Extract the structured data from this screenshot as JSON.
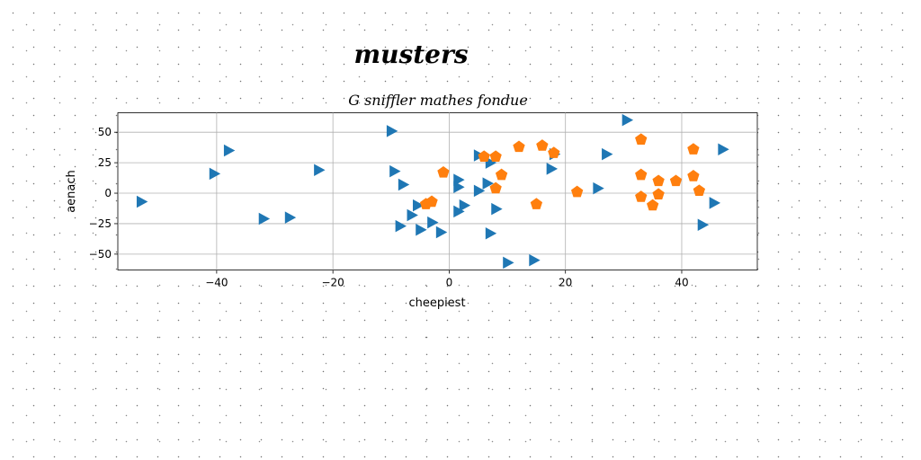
{
  "figure_title": "musters",
  "chart_data": {
    "type": "scatter",
    "title": "G sniffler mathes fondue",
    "xlabel": "cheepiest",
    "ylabel": "aenach",
    "xlim": [
      -57,
      53
    ],
    "ylim": [
      -63,
      66
    ],
    "xticks": [
      -40,
      -20,
      0,
      20,
      40
    ],
    "yticks": [
      -50,
      -25,
      0,
      25,
      50
    ],
    "xtick_labels": [
      "−40",
      "−20",
      "0",
      "20",
      "40"
    ],
    "ytick_labels": [
      "−50",
      "−25",
      "0",
      "25",
      "50"
    ],
    "grid": true,
    "series": [
      {
        "marker": "triangle-right",
        "color": "#1f77b4",
        "points": [
          [
            -53,
            -7
          ],
          [
            -40.5,
            16
          ],
          [
            -38,
            35
          ],
          [
            -32,
            -21
          ],
          [
            -27.5,
            -20
          ],
          [
            -22.5,
            19
          ],
          [
            -10,
            51
          ],
          [
            -9.5,
            18
          ],
          [
            -8,
            7
          ],
          [
            -8.5,
            -27
          ],
          [
            -6.5,
            -18
          ],
          [
            -5.5,
            -10
          ],
          [
            -5,
            -30
          ],
          [
            -3,
            -24
          ],
          [
            -1.5,
            -32
          ],
          [
            1.5,
            11
          ],
          [
            1.5,
            5
          ],
          [
            1.5,
            -15
          ],
          [
            2.5,
            -10
          ],
          [
            5,
            2
          ],
          [
            5,
            31
          ],
          [
            6.5,
            8
          ],
          [
            7,
            25
          ],
          [
            7,
            -33
          ],
          [
            8,
            -13
          ],
          [
            10,
            -57
          ],
          [
            14.5,
            -55
          ],
          [
            17.5,
            20
          ],
          [
            18,
            32
          ],
          [
            25.5,
            4
          ],
          [
            27,
            32
          ],
          [
            30.5,
            60
          ],
          [
            43.5,
            -26
          ],
          [
            45.5,
            -8
          ],
          [
            47,
            36
          ]
        ]
      },
      {
        "marker": "pentagon",
        "color": "#ff7f0e",
        "points": [
          [
            -4,
            -9
          ],
          [
            -3,
            -7
          ],
          [
            -1,
            17
          ],
          [
            6,
            30
          ],
          [
            8,
            30
          ],
          [
            8,
            4
          ],
          [
            9,
            15
          ],
          [
            12,
            38
          ],
          [
            15,
            -9
          ],
          [
            16,
            39
          ],
          [
            18,
            33
          ],
          [
            22,
            1
          ],
          [
            33,
            44
          ],
          [
            33,
            15
          ],
          [
            33,
            -3
          ],
          [
            35,
            -10
          ],
          [
            36,
            10
          ],
          [
            36,
            -1
          ],
          [
            39,
            10
          ],
          [
            42,
            36
          ],
          [
            42,
            14
          ],
          [
            43,
            2
          ]
        ]
      }
    ]
  }
}
